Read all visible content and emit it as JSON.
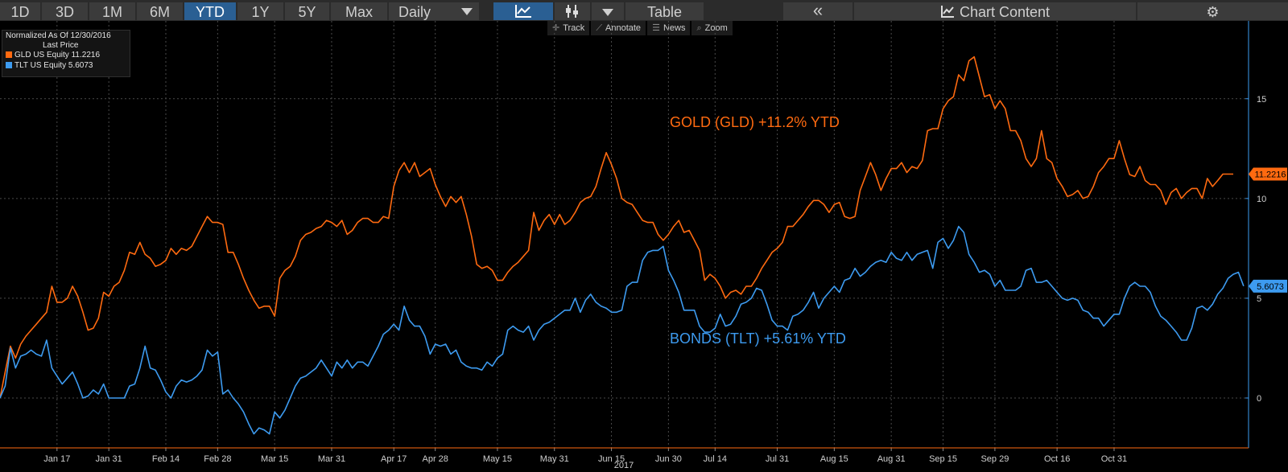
{
  "toolbar": {
    "ranges": [
      "1D",
      "3D",
      "1M",
      "6M",
      "YTD",
      "1Y",
      "5Y",
      "Max"
    ],
    "active_range": "YTD",
    "frequency": "Daily",
    "table_label": "Table",
    "collapse_label": "«",
    "chart_content_label": "Chart Content",
    "settings_icon": "⚙"
  },
  "subtools": [
    {
      "icon": "✛",
      "label": "Track"
    },
    {
      "icon": "⟋",
      "label": "Annotate"
    },
    {
      "icon": "☰",
      "label": "News"
    },
    {
      "icon": "⌕",
      "label": "Zoom"
    }
  ],
  "legend": {
    "line1": "Normalized As Of 12/30/2016",
    "line2": "Last Price",
    "entries": [
      {
        "name": "GLD US Equity",
        "value": "11.2216",
        "color": "#ff6a10"
      },
      {
        "name": "TLT US Equity",
        "value": "5.6073",
        "color": "#3d9bf0"
      }
    ]
  },
  "chart_data": {
    "type": "line",
    "title": "",
    "x_labels": [
      "Jan 17",
      "Jan 31",
      "Feb 14",
      "Feb 28",
      "Mar 15",
      "Mar 31",
      "Apr 17",
      "Apr 28",
      "May 15",
      "May 31",
      "Jun 15",
      "Jun 30",
      "Jul 14",
      "Jul 31",
      "Aug 15",
      "Aug 31",
      "Sep 15",
      "Sep 29",
      "Oct 16",
      "Oct 31"
    ],
    "x_label_index": [
      11,
      21,
      32,
      42,
      53,
      64,
      76,
      84,
      96,
      107,
      118,
      129,
      138,
      150,
      161,
      172,
      182,
      192,
      204,
      215
    ],
    "x_axis_year": "2017",
    "y_ticks": [
      0,
      5,
      10,
      15
    ],
    "ylim": [
      -2.5,
      18.9
    ],
    "series": [
      {
        "name": "GLD US Equity",
        "last": "11.2216",
        "color": "#ff6a10",
        "values": [
          0,
          1.3,
          2.6,
          2.0,
          2.7,
          3.1,
          3.4,
          3.7,
          4.0,
          4.3,
          5.6,
          4.8,
          4.8,
          5.0,
          5.6,
          5.1,
          4.3,
          3.4,
          3.5,
          4.0,
          5.3,
          5.1,
          5.6,
          5.8,
          6.4,
          7.3,
          7.2,
          7.8,
          7.2,
          7.0,
          6.6,
          6.7,
          6.9,
          7.5,
          7.2,
          7.5,
          7.4,
          7.6,
          8.1,
          8.6,
          9.1,
          8.8,
          8.8,
          8.7,
          7.3,
          7.3,
          6.7,
          6.0,
          5.4,
          4.9,
          4.5,
          4.6,
          4.6,
          4.1,
          6.0,
          6.4,
          6.6,
          7.1,
          7.9,
          8.2,
          8.3,
          8.5,
          8.6,
          8.9,
          8.8,
          8.6,
          8.9,
          8.2,
          8.4,
          8.8,
          9.0,
          9.0,
          8.8,
          8.8,
          9.1,
          9.0,
          10.6,
          11.4,
          11.8,
          11.3,
          11.8,
          11.1,
          11.3,
          11.5,
          10.7,
          10.1,
          9.6,
          10.1,
          9.8,
          10.1,
          9.2,
          8.1,
          6.7,
          6.5,
          6.6,
          6.4,
          5.9,
          5.9,
          6.3,
          6.6,
          6.8,
          7.1,
          7.4,
          9.3,
          8.4,
          8.9,
          9.2,
          8.7,
          9.2,
          8.7,
          8.9,
          9.3,
          9.8,
          10.0,
          10.1,
          10.6,
          11.5,
          12.3,
          11.7,
          11.0,
          10.0,
          9.8,
          9.7,
          9.3,
          8.9,
          8.8,
          8.8,
          8.2,
          7.9,
          8.2,
          8.6,
          8.9,
          8.3,
          8.4,
          7.9,
          7.4,
          5.9,
          6.2,
          6.0,
          5.6,
          5.0,
          5.3,
          5.4,
          5.2,
          5.6,
          5.6,
          6.0,
          6.5,
          6.9,
          7.3,
          7.5,
          7.8,
          8.6,
          8.6,
          8.9,
          9.2,
          9.6,
          9.9,
          9.9,
          9.7,
          9.3,
          9.7,
          9.8,
          9.1,
          9.0,
          9.1,
          10.4,
          11.1,
          11.8,
          11.2,
          10.4,
          11.0,
          11.5,
          11.5,
          11.8,
          11.3,
          11.6,
          11.5,
          11.9,
          13.4,
          13.5,
          13.5,
          14.5,
          14.9,
          15.1,
          16.2,
          15.9,
          16.9,
          17.1,
          16.1,
          15.1,
          15.2,
          14.5,
          14.9,
          14.5,
          13.4,
          13.4,
          12.9,
          12.0,
          11.6,
          12.0,
          13.4,
          12.0,
          11.8,
          11.0,
          10.6,
          10.1,
          10.2,
          10.4,
          10.0,
          10.1,
          10.6,
          11.3,
          11.6,
          12.0,
          12.0,
          12.9,
          12.0,
          11.2,
          11.1,
          11.6,
          10.9,
          10.7,
          10.7,
          10.4,
          9.7,
          10.3,
          10.5,
          10.0,
          10.3,
          10.5,
          10.5,
          10.0,
          11.0,
          10.6,
          10.9,
          11.2216,
          11.2216,
          11.2216
        ]
      },
      {
        "name": "TLT US Equity",
        "last": "5.6073",
        "color": "#3d9bf0",
        "values": [
          0,
          0.6,
          2.5,
          1.5,
          2.1,
          2.2,
          2.4,
          2.2,
          2.1,
          2.9,
          1.5,
          1.1,
          0.7,
          1.0,
          1.3,
          0.7,
          0.0,
          0.1,
          0.4,
          0.2,
          0.7,
          0.0,
          0.0,
          0.0,
          0.0,
          0.6,
          0.7,
          1.5,
          2.6,
          1.5,
          1.4,
          0.9,
          0.3,
          0.0,
          0.6,
          0.9,
          0.8,
          0.9,
          1.1,
          1.4,
          2.4,
          2.1,
          2.3,
          0.2,
          0.4,
          0.0,
          -0.3,
          -0.7,
          -1.3,
          -1.8,
          -1.5,
          -1.6,
          -1.8,
          -0.7,
          -1.0,
          -0.6,
          0.0,
          0.6,
          1.0,
          1.1,
          1.3,
          1.5,
          1.9,
          1.5,
          1.1,
          1.8,
          1.5,
          1.9,
          1.5,
          1.8,
          1.8,
          1.6,
          2.1,
          2.6,
          3.2,
          3.4,
          3.7,
          3.4,
          4.6,
          3.9,
          3.6,
          3.6,
          3.1,
          2.2,
          2.7,
          2.6,
          2.7,
          2.2,
          2.4,
          1.8,
          1.6,
          1.5,
          1.5,
          1.4,
          1.8,
          1.6,
          2.0,
          2.2,
          3.4,
          3.6,
          3.4,
          3.3,
          3.6,
          2.9,
          3.4,
          3.7,
          3.8,
          4.0,
          4.2,
          4.4,
          4.4,
          5.0,
          4.3,
          4.9,
          5.2,
          4.8,
          4.6,
          4.5,
          4.3,
          4.3,
          4.4,
          5.6,
          5.8,
          5.8,
          6.9,
          7.3,
          7.4,
          7.4,
          7.6,
          6.4,
          5.9,
          5.3,
          4.4,
          4.4,
          4.4,
          3.6,
          3.3,
          3.3,
          3.5,
          4.2,
          3.6,
          3.7,
          4.1,
          4.7,
          4.8,
          5.0,
          5.5,
          5.4,
          4.7,
          3.9,
          3.6,
          3.6,
          3.4,
          4.1,
          4.2,
          4.4,
          4.8,
          5.3,
          4.5,
          5.0,
          5.3,
          5.6,
          5.3,
          5.9,
          6.0,
          6.5,
          6.1,
          6.3,
          6.6,
          6.8,
          6.9,
          6.8,
          7.3,
          7.0,
          6.9,
          7.3,
          6.9,
          7.2,
          7.3,
          7.4,
          6.5,
          7.8,
          8.0,
          7.5,
          7.9,
          8.6,
          8.3,
          7.2,
          6.8,
          6.3,
          6.4,
          6.2,
          5.6,
          5.9,
          5.4,
          5.4,
          5.4,
          5.6,
          6.4,
          6.5,
          5.8,
          5.8,
          5.9,
          5.6,
          5.3,
          5.0,
          4.9,
          5.0,
          4.9,
          4.4,
          4.3,
          4.0,
          4.0,
          3.6,
          3.9,
          4.2,
          4.2,
          5.0,
          5.6,
          5.8,
          5.6,
          5.6,
          5.3,
          4.6,
          4.1,
          3.9,
          3.6,
          3.3,
          2.9,
          2.9,
          3.5,
          4.5,
          4.6,
          4.4,
          4.7,
          5.2,
          5.5,
          6.0,
          6.2,
          6.3,
          5.6073
        ]
      }
    ],
    "annotations": [
      {
        "text": "GOLD (GLD) +11.2% YTD",
        "color": "#ff6a10"
      },
      {
        "text": "BONDS (TLT) +5.61% YTD",
        "color": "#3d9bf0"
      }
    ]
  }
}
